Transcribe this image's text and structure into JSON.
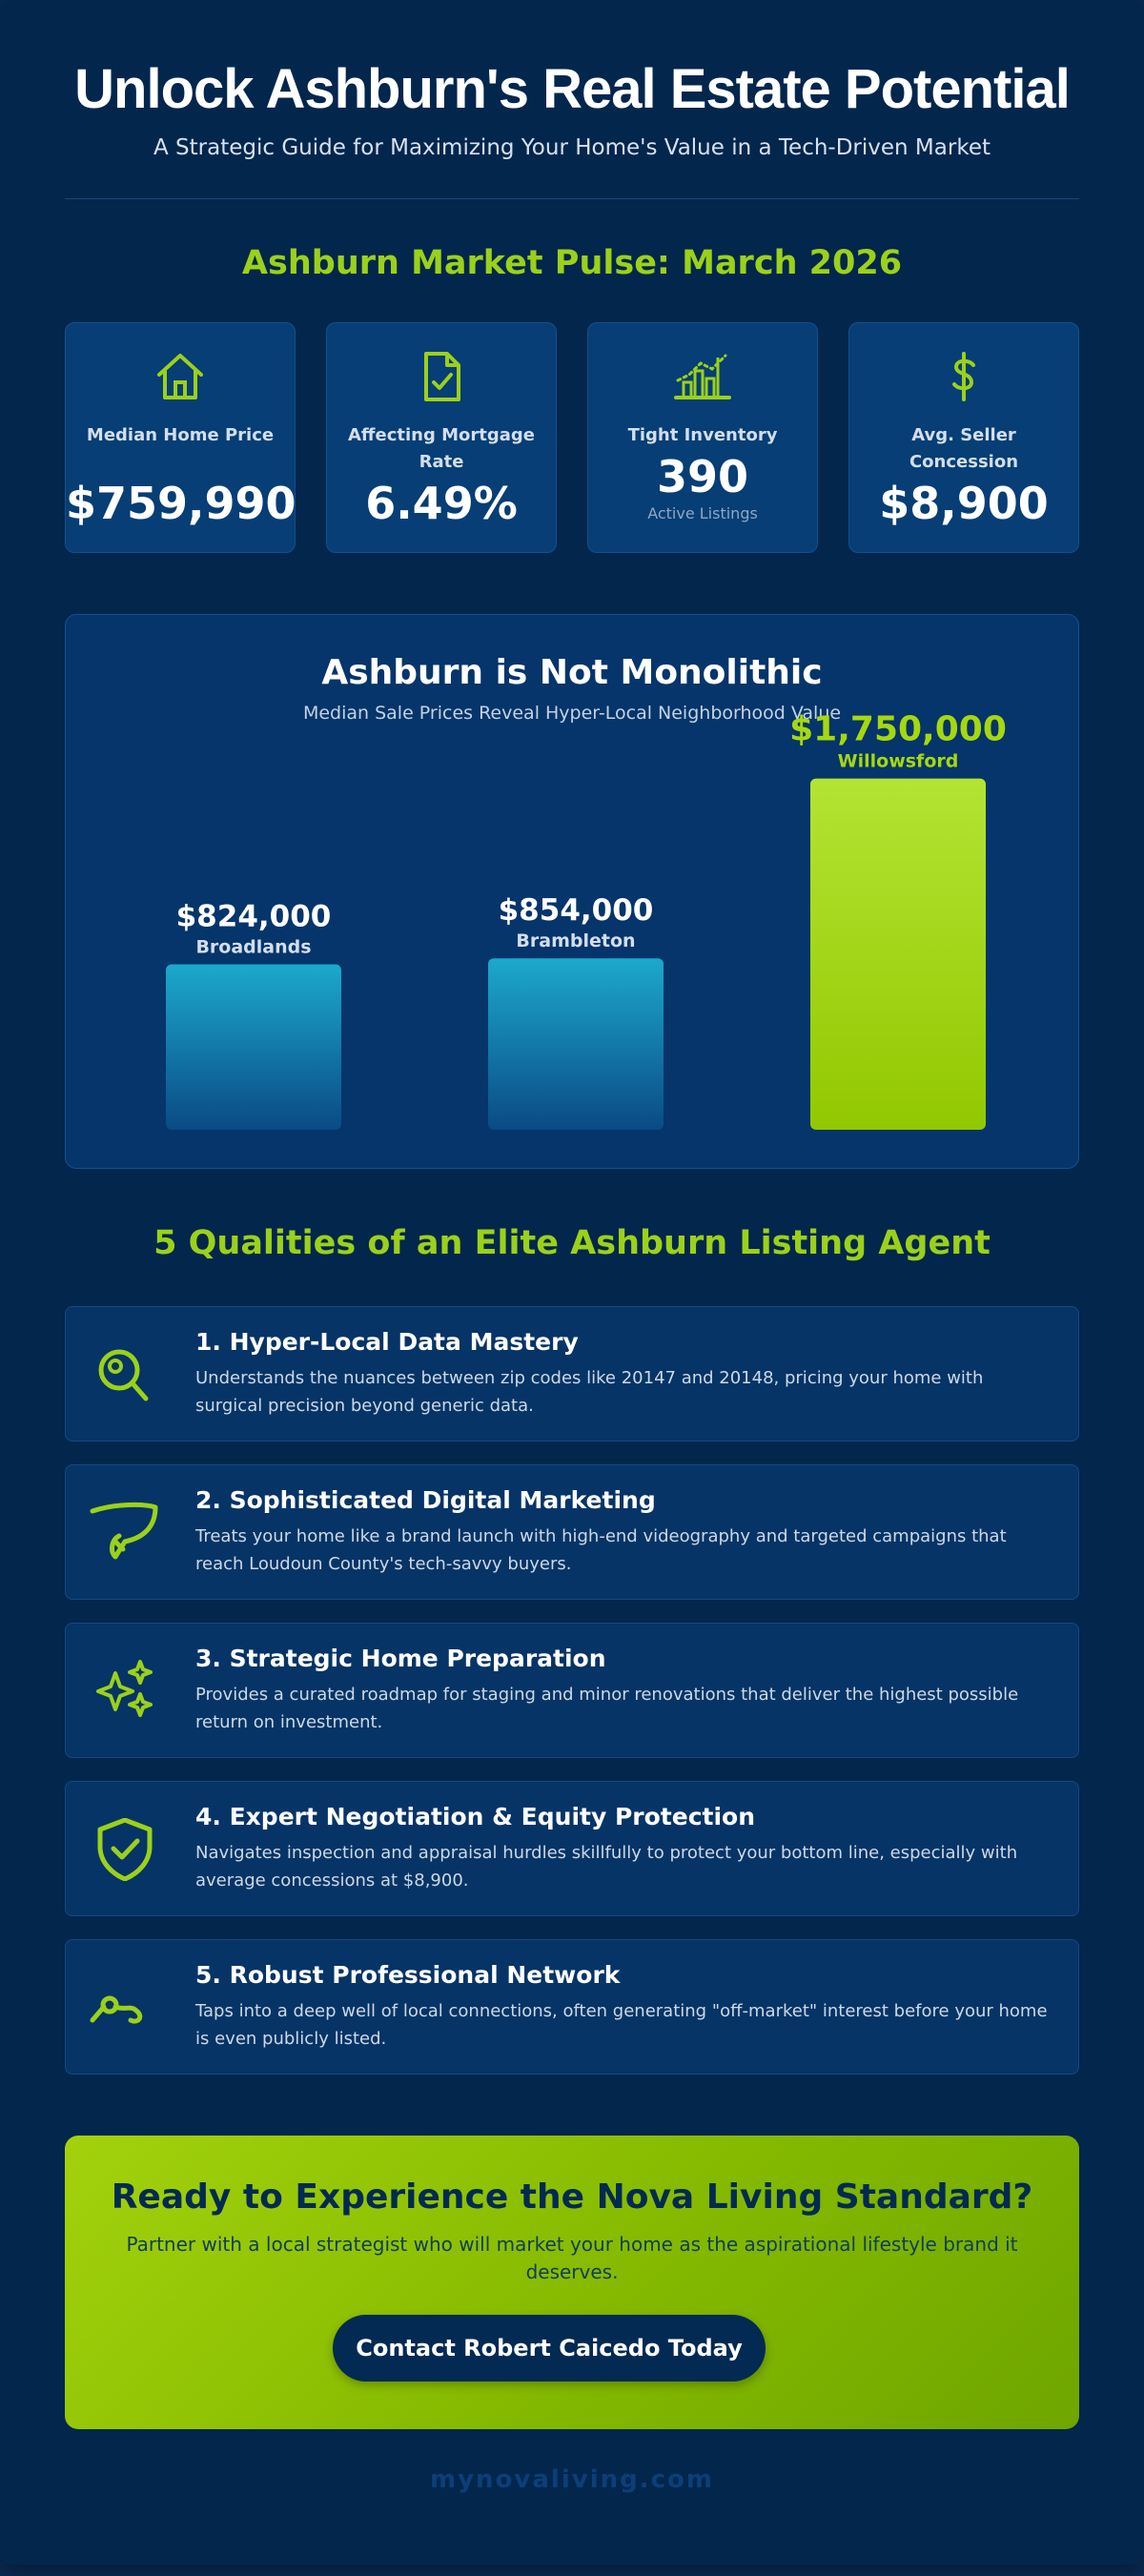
{
  "header": {
    "title": "Unlock Ashburn's Real Estate Potential",
    "subtitle": "A Strategic Guide for Maximizing Your Home's Value in a Tech-Driven Market"
  },
  "market": {
    "heading": "Ashburn Market Pulse: March 2026",
    "stats": [
      {
        "icon": "house-icon",
        "label": "Median Home Price",
        "value": "$759,990",
        "sub": ""
      },
      {
        "icon": "document-check-icon",
        "label": "Affecting Mortgage Rate",
        "value": "6.49%",
        "sub": ""
      },
      {
        "icon": "city-chart-icon",
        "label": "Tight Inventory",
        "value": "390",
        "sub": "Active Listings"
      },
      {
        "icon": "dollar-icon",
        "label": "Avg. Seller Concession",
        "value": "$8,900",
        "sub": ""
      }
    ]
  },
  "chart_data": {
    "type": "bar",
    "title": "Ashburn is Not Monolithic",
    "subtitle": "Median Sale Prices Reveal Hyper-Local Neighborhood Value",
    "categories": [
      "Broadlands",
      "Brambleton",
      "Willowsford"
    ],
    "values": [
      824000,
      854000,
      1750000
    ],
    "value_labels": [
      "$824,000",
      "$854,000",
      "$1,750,000"
    ],
    "ylim": [
      0,
      1900000
    ],
    "grid": false,
    "colors": [
      "#1ba6c9",
      "#1ba6c9",
      "#a6d80f"
    ],
    "xlabel": "",
    "ylabel": ""
  },
  "agents": {
    "heading": "5 Qualities of an Elite Ashburn Listing Agent",
    "items": [
      {
        "icon": "magnifier-icon",
        "title": "1. Hyper-Local Data Mastery",
        "desc": "Understands the nuances between zip codes like 20147 and 20148, pricing your home with surgical precision beyond generic data."
      },
      {
        "icon": "megaphone-icon",
        "title": "2. Sophisticated Digital Marketing",
        "desc": "Treats your home like a brand launch with high-end videography and targeted campaigns that reach Loudoun County's tech-savvy buyers."
      },
      {
        "icon": "sparkles-icon",
        "title": "3. Strategic Home Preparation",
        "desc": "Provides a curated roadmap for staging and minor renovations that deliver the highest possible return on investment."
      },
      {
        "icon": "shield-check-icon",
        "title": "4. Expert Negotiation & Equity Protection",
        "desc": "Navigates inspection and appraisal hurdles skillfully to protect your bottom line, especially with average concessions at $8,900."
      },
      {
        "icon": "network-icon",
        "title": "5. Robust Professional Network",
        "desc": "Taps into a deep well of local connections, often generating \"off-market\" interest before your home is even publicly listed."
      }
    ]
  },
  "cta": {
    "title": "Ready to Experience the Nova Living Standard?",
    "text": "Partner with a local strategist who will market your home as the aspirational lifestyle brand it deserves.",
    "button": "Contact Robert Caicedo Today"
  },
  "footer": {
    "site": "mynovaliving.com"
  },
  "colors": {
    "accent": "#9bd11a",
    "navy": "#03264d",
    "teal": "#1ba6c9"
  }
}
